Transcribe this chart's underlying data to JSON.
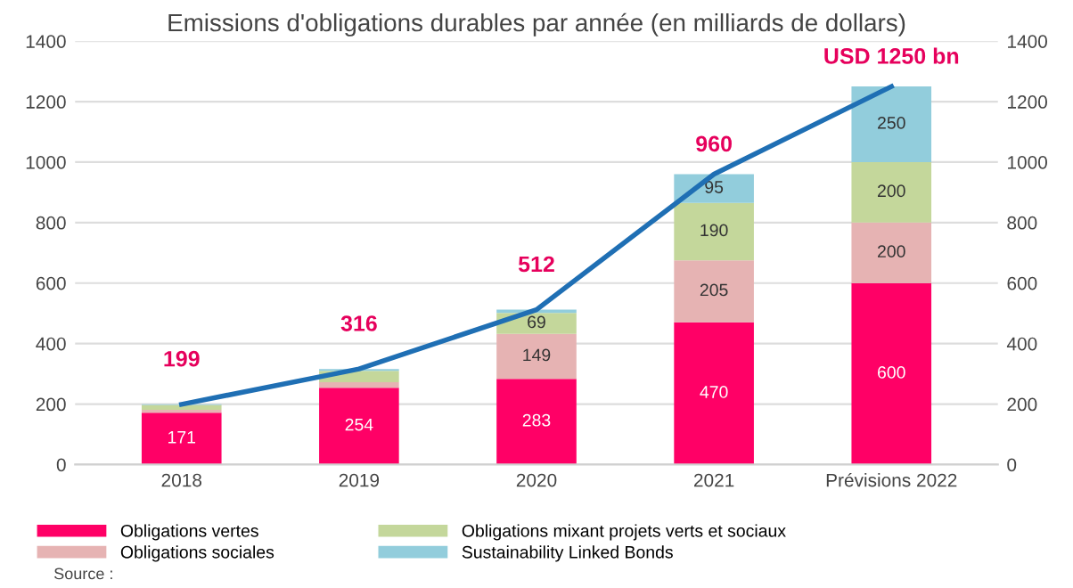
{
  "chart_data": {
    "type": "bar",
    "title": "Emissions d'obligations durables par année (en milliards de dollars)",
    "categories": [
      "2018",
      "2019",
      "2020",
      "2021",
      "Prévisions 2022"
    ],
    "stacked": true,
    "series": [
      {
        "name": "Obligations vertes",
        "color": "#ff0066",
        "values": [
          171,
          254,
          283,
          470,
          600
        ],
        "value_labels": [
          "171",
          "254",
          "283",
          "470",
          "600"
        ]
      },
      {
        "name": "Obligations sociales",
        "color": "#e6b3b3",
        "values": [
          10,
          18,
          149,
          205,
          200
        ],
        "value_labels": [
          null,
          null,
          "149",
          "205",
          "200"
        ]
      },
      {
        "name": "Obligations mixant projets verts et sociaux",
        "color": "#c4d79b",
        "values": [
          16,
          38,
          69,
          190,
          200
        ],
        "value_labels": [
          null,
          null,
          "69",
          "190",
          "200"
        ]
      },
      {
        "name": "Sustainability Linked Bonds",
        "color": "#92cddc",
        "values": [
          2,
          6,
          11,
          95,
          250
        ],
        "value_labels": [
          null,
          null,
          null,
          "95",
          "250"
        ]
      },
      {
        "type": "line",
        "axis": "y2",
        "color": "#1f6fb4",
        "values": [
          199,
          316,
          512,
          960,
          1250
        ],
        "value_labels": [
          "199",
          "316",
          "512",
          "960",
          "USD 1250 bn"
        ]
      }
    ],
    "ylim": [
      0,
      1400
    ],
    "yticks": [
      0,
      200,
      400,
      600,
      800,
      1000,
      1200,
      1400
    ],
    "y2lim": [
      0,
      1400
    ],
    "y2ticks": [
      0,
      200,
      400,
      600,
      800,
      1000,
      1200,
      1400
    ],
    "grid": "y",
    "legend": "bottom",
    "annotations": [
      "Source :"
    ]
  }
}
